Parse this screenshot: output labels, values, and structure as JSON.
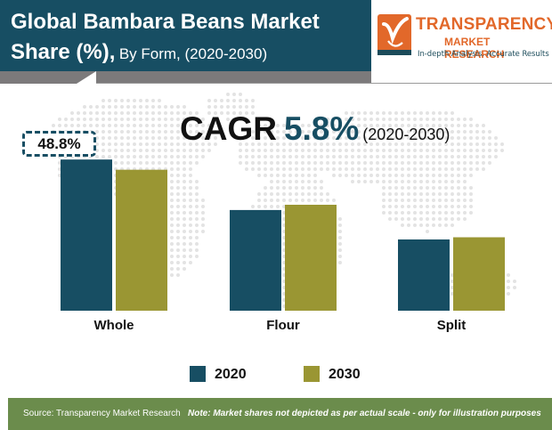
{
  "header": {
    "title_bold": "Global Bambara Beans Market Share (%),",
    "title_light": "By Form, (2020-2030)"
  },
  "logo": {
    "line1": "TRANSPARENCY",
    "line2": "MARKET RESEARCH",
    "tagline": "In-depth Analysis. Accurate Results"
  },
  "cagr": {
    "label": "CAGR",
    "value": "5.8%",
    "period": "(2020-2030)"
  },
  "annotation": "48.8%",
  "chart_data": {
    "type": "bar",
    "categories": [
      "Whole",
      "Flour",
      "Split"
    ],
    "series": [
      {
        "name": "2020",
        "values": [
          48.8,
          32.5,
          23.0
        ],
        "color": "#174e63"
      },
      {
        "name": "2030",
        "values": [
          45.5,
          34.2,
          23.7
        ],
        "color": "#9a9633"
      }
    ],
    "ylim": [
      0,
      50
    ],
    "legend_position": "bottom"
  },
  "legend": {
    "items": [
      "2020",
      "2030"
    ]
  },
  "footer": {
    "source": "Source: Transparency Market Research",
    "note": "Note: Market shares not depicted as per actual scale - only for illustration purposes"
  },
  "colors": {
    "header_bg": "#174e63",
    "accent_orange": "#e2682a",
    "footer_bg": "#6b8c4c"
  }
}
